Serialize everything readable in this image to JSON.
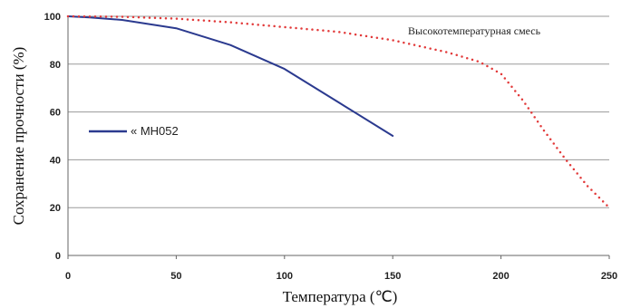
{
  "chart_data": {
    "type": "line",
    "xlabel": "Температура (℃)",
    "ylabel": "Сохранение прочности (%)",
    "xlim": [
      0,
      250
    ],
    "ylim": [
      0,
      100
    ],
    "x_ticks": [
      "0",
      "50",
      "100",
      "150",
      "200",
      "250"
    ],
    "y_ticks": [
      "0",
      "20",
      "40",
      "60",
      "80",
      "100"
    ],
    "grid": "horizontal",
    "legend_position": "left-middle",
    "series": [
      {
        "name": "« MH052",
        "color": "#2b3a8f",
        "style": "solid",
        "x": [
          0,
          10,
          25,
          50,
          75,
          100,
          125,
          150
        ],
        "y": [
          100,
          99.5,
          98.5,
          95,
          88,
          78,
          64,
          50
        ]
      },
      {
        "name": "Высокотемпературная смесь",
        "color": "#e23a3a",
        "style": "dotted",
        "x": [
          0,
          25,
          50,
          75,
          100,
          125,
          150,
          175,
          190,
          200,
          210,
          220,
          230,
          240,
          250
        ],
        "y": [
          100,
          99.8,
          99,
          97.5,
          95.5,
          93.5,
          90,
          85,
          81,
          76,
          65,
          52,
          40,
          29,
          20
        ]
      }
    ]
  }
}
